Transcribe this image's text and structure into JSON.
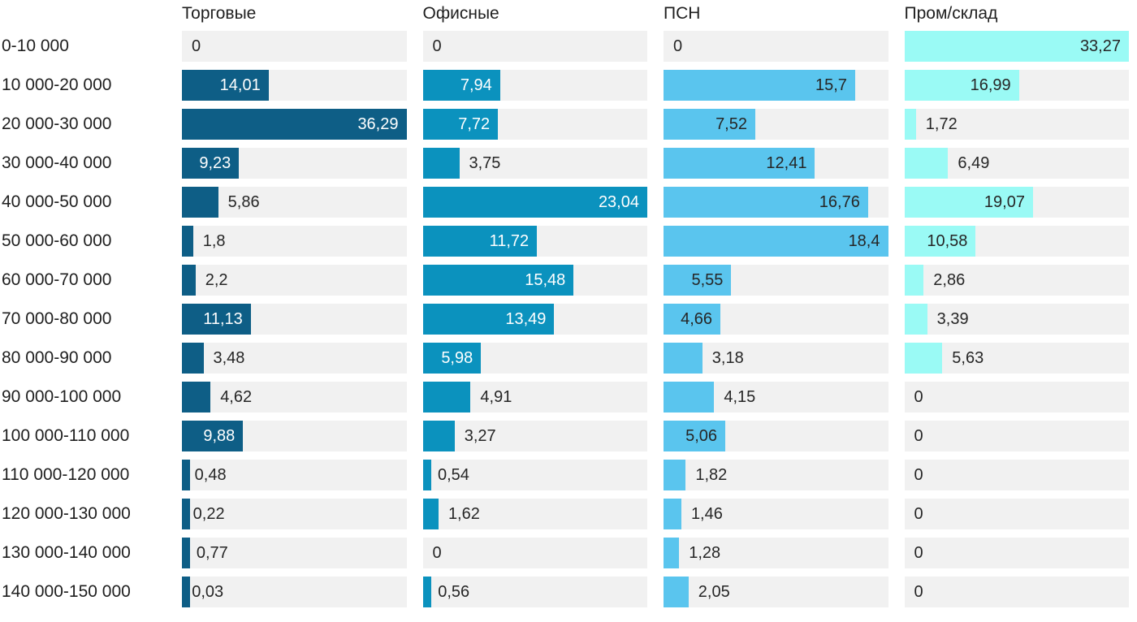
{
  "chart_data": {
    "type": "bar",
    "orientation": "horizontal",
    "title": "",
    "xlabel": "",
    "ylabel": "",
    "grid": false,
    "legend_position": "column-headers-top",
    "scale_note": "each column scaled to its own max value",
    "track_color": "#f1f1f1",
    "label_text_color": "#1f1f1f",
    "categories": [
      "0-10 000",
      "10 000-20 000",
      "20 000-30 000",
      "30 000-40 000",
      "40 000-50 000",
      "50 000-60 000",
      "60 000-70 000",
      "70 000-80 000",
      "80 000-90 000",
      "90 000-100 000",
      "100 000-110 000",
      "110 000-120 000",
      "120 000-130 000",
      "130 000-140 000",
      "140 000-150 000"
    ],
    "series": [
      {
        "name": "Торговые",
        "color": "#0e5e86",
        "inside_label_color": "#ffffff",
        "values": [
          0,
          14.01,
          36.29,
          9.23,
          5.86,
          1.8,
          2.2,
          11.13,
          3.48,
          4.62,
          9.88,
          0.48,
          0.22,
          0.77,
          0.03
        ],
        "labels": [
          "0",
          "14,01",
          "36,29",
          "9,23",
          "5,86",
          "1,8",
          "2,2",
          "11,13",
          "3,48",
          "4,62",
          "9,88",
          "0,48",
          "0,22",
          "0,77",
          "0,03"
        ]
      },
      {
        "name": "Офисные",
        "color": "#0b92be",
        "inside_label_color": "#ffffff",
        "values": [
          0,
          7.94,
          7.72,
          3.75,
          23.04,
          11.72,
          15.48,
          13.49,
          5.98,
          4.91,
          3.27,
          0.54,
          1.62,
          0,
          0.56
        ],
        "labels": [
          "0",
          "7,94",
          "7,72",
          "3,75",
          "23,04",
          "11,72",
          "15,48",
          "13,49",
          "5,98",
          "4,91",
          "3,27",
          "0,54",
          "1,62",
          "0",
          "0,56"
        ]
      },
      {
        "name": "ПСН",
        "color": "#5ac5ee",
        "inside_label_color": "#262626",
        "values": [
          0,
          15.7,
          7.52,
          12.41,
          16.76,
          18.4,
          5.55,
          4.66,
          3.18,
          4.15,
          5.06,
          1.82,
          1.46,
          1.28,
          2.05
        ],
        "labels": [
          "0",
          "15,7",
          "7,52",
          "12,41",
          "16,76",
          "18,4",
          "5,55",
          "4,66",
          "3,18",
          "4,15",
          "5,06",
          "1,82",
          "1,46",
          "1,28",
          "2,05"
        ]
      },
      {
        "name": "Пром/склад",
        "color": "#9afaf5",
        "inside_label_color": "#262626",
        "values": [
          33.27,
          16.99,
          1.72,
          6.49,
          19.07,
          10.58,
          2.86,
          3.39,
          5.63,
          0,
          0,
          0,
          0,
          0,
          0
        ],
        "labels": [
          "33,27",
          "16,99",
          "1,72",
          "6,49",
          "19,07",
          "10,58",
          "2,86",
          "3,39",
          "5,63",
          "0",
          "0",
          "0",
          "0",
          "0",
          "0"
        ]
      }
    ]
  }
}
